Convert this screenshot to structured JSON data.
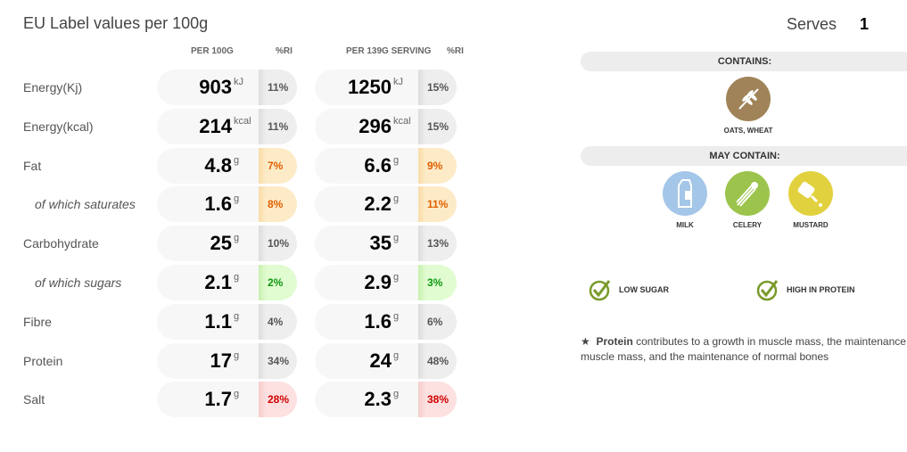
{
  "title": "EU Label values per 100g",
  "serves_label": "Serves",
  "serves_value": "1",
  "headers": {
    "per100": "PER 100G",
    "ri1": "%RI",
    "serving": "PER 139G SERVING",
    "ri2": "%RI"
  },
  "rows": [
    {
      "label": "Energy(Kj)",
      "sub": false,
      "v1": "903",
      "u1": "kJ",
      "ri1": "11%",
      "v2": "1250",
      "u2": "kJ",
      "ri2": "15%",
      "c1": "gray",
      "c2": "gray"
    },
    {
      "label": "Energy(kcal)",
      "sub": false,
      "v1": "214",
      "u1": "kcal",
      "ri1": "11%",
      "v2": "296",
      "u2": "kcal",
      "ri2": "15%",
      "c1": "gray",
      "c2": "gray"
    },
    {
      "label": "Fat",
      "sub": false,
      "v1": "4.8",
      "u1": "g",
      "ri1": "7%",
      "v2": "6.6",
      "u2": "g",
      "ri2": "9%",
      "c1": "orange",
      "c2": "orange"
    },
    {
      "label": "of which saturates",
      "sub": true,
      "v1": "1.6",
      "u1": "g",
      "ri1": "8%",
      "v2": "2.2",
      "u2": "g",
      "ri2": "11%",
      "c1": "orange",
      "c2": "orange"
    },
    {
      "label": "Carbohydrate",
      "sub": false,
      "v1": "25",
      "u1": "g",
      "ri1": "10%",
      "v2": "35",
      "u2": "g",
      "ri2": "13%",
      "c1": "gray",
      "c2": "gray"
    },
    {
      "label": "of which sugars",
      "sub": true,
      "v1": "2.1",
      "u1": "g",
      "ri1": "2%",
      "v2": "2.9",
      "u2": "g",
      "ri2": "3%",
      "c1": "green",
      "c2": "green"
    },
    {
      "label": "Fibre",
      "sub": false,
      "v1": "1.1",
      "u1": "g",
      "ri1": "4%",
      "v2": "1.6",
      "u2": "g",
      "ri2": "6%",
      "c1": "gray",
      "c2": "gray"
    },
    {
      "label": "Protein",
      "sub": false,
      "v1": "17",
      "u1": "g",
      "ri1": "34%",
      "v2": "24",
      "u2": "g",
      "ri2": "48%",
      "c1": "gray",
      "c2": "gray"
    },
    {
      "label": "Salt",
      "sub": false,
      "v1": "1.7",
      "u1": "g",
      "ri1": "28%",
      "v2": "2.3",
      "u2": "g",
      "ri2": "38%",
      "c1": "red",
      "c2": "red"
    }
  ],
  "contains": {
    "label": "CONTAINS:",
    "items": [
      {
        "name": "OATS, WHEAT",
        "icon": "wheat-icon",
        "color": "#a08358"
      }
    ]
  },
  "may_contain": {
    "label": "MAY CONTAIN:",
    "items": [
      {
        "name": "MILK",
        "icon": "milk-carton-icon",
        "color": "#a4c6e8"
      },
      {
        "name": "CELERY",
        "icon": "celery-icon",
        "color": "#9cc44c"
      },
      {
        "name": "MUSTARD",
        "icon": "mustard-bottle-icon",
        "color": "#e2d13e"
      }
    ]
  },
  "claims": [
    "LOW SUGAR",
    "HIGH IN PROTEIN"
  ],
  "note": {
    "star": "★",
    "bold": "Protein",
    "line1": " contributes to a growth in muscle mass, the maintenance of",
    "line2": "muscle mass, and the maintenance of normal bones"
  }
}
